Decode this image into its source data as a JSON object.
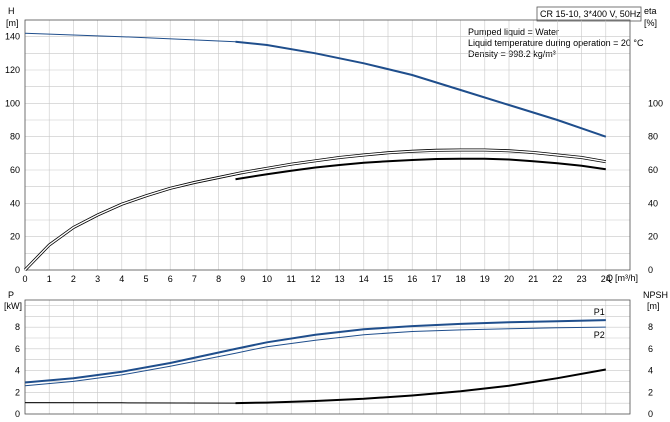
{
  "info": {
    "model": "CR 15-10, 3*400 V, 50Hz",
    "lines": [
      "Pumped liquid = Water",
      "Liquid temperature during operation = 20 °C",
      "Density = 998.2 kg/m³"
    ]
  },
  "colors": {
    "head": "#1f4e8c",
    "eta": "#000000",
    "p": "#1f4e8c",
    "npsh": "#000000",
    "grid": "#c8c8c8"
  },
  "chart_data": [
    {
      "type": "line",
      "x_label": "Q",
      "x_unit": "[m³/h]",
      "left_axis": {
        "label": "H",
        "unit": "[m]",
        "ylim": [
          0,
          150
        ],
        "ticks": [
          0,
          20,
          40,
          60,
          80,
          100,
          120,
          140
        ]
      },
      "right_axis": {
        "label": "eta",
        "unit": "[%]",
        "ylim": [
          0,
          150
        ],
        "ticks": [
          0,
          20,
          40,
          60,
          80,
          100
        ]
      },
      "xlim": [
        0,
        25
      ],
      "x_ticks": [
        0,
        1,
        2,
        3,
        4,
        5,
        6,
        7,
        8,
        9,
        10,
        11,
        12,
        13,
        14,
        15,
        16,
        17,
        18,
        19,
        20,
        21,
        22,
        23,
        24
      ],
      "grid": true,
      "series": [
        {
          "key": "head_thin",
          "axis": "left",
          "style": "thin",
          "x": [
            0,
            4,
            8.7
          ],
          "y": [
            142,
            140,
            137
          ]
        },
        {
          "key": "head",
          "axis": "left",
          "style": "thick",
          "x": [
            8.7,
            10,
            12,
            14,
            16,
            18,
            20,
            22,
            24
          ],
          "y": [
            137,
            135,
            130,
            124,
            117,
            108,
            99,
            90,
            80
          ]
        },
        {
          "key": "eta_upper",
          "axis": "right",
          "style": "double",
          "x": [
            0,
            1,
            2,
            3,
            4,
            5,
            6,
            7,
            8,
            9,
            10,
            11,
            12,
            13,
            14,
            15,
            16,
            17,
            18,
            19,
            20,
            21,
            22,
            23,
            24
          ],
          "y": [
            0,
            15,
            25.5,
            33,
            39.5,
            44.5,
            49,
            52.5,
            55.5,
            58.5,
            61,
            63.5,
            65.5,
            67.5,
            69,
            70.3,
            71.2,
            71.8,
            72,
            72,
            71.5,
            70.5,
            69,
            67.5,
            65
          ]
        },
        {
          "key": "eta",
          "axis": "right",
          "style": "thick",
          "x": [
            8.7,
            10,
            11,
            12,
            13,
            14,
            15,
            16,
            17,
            18,
            19,
            20,
            21,
            22,
            23,
            24
          ],
          "y": [
            54.5,
            57.5,
            59.5,
            61.5,
            63,
            64.3,
            65.3,
            66,
            66.6,
            66.8,
            66.8,
            66.3,
            65.3,
            64,
            62.5,
            60.5
          ]
        }
      ]
    },
    {
      "type": "line",
      "x_label": "",
      "left_axis": {
        "label": "P",
        "unit": "[kW]",
        "ylim": [
          0,
          10.5
        ],
        "ticks": [
          0,
          2,
          4,
          6,
          8
        ]
      },
      "right_axis": {
        "label": "NPSH",
        "unit": "[m]",
        "ylim": [
          0,
          10.5
        ],
        "ticks": [
          0,
          2,
          4,
          6,
          8
        ]
      },
      "xlim": [
        0,
        25
      ],
      "grid": true,
      "series": [
        {
          "key": "p1",
          "name": "P1",
          "axis": "left",
          "style": "thick",
          "x": [
            0,
            2,
            4,
            6,
            8.7,
            10,
            12,
            14,
            16,
            18,
            20,
            22,
            24
          ],
          "y": [
            2.9,
            3.3,
            3.9,
            4.7,
            6.0,
            6.6,
            7.3,
            7.8,
            8.1,
            8.3,
            8.45,
            8.55,
            8.65
          ]
        },
        {
          "key": "p2",
          "name": "P2",
          "axis": "left",
          "style": "thin",
          "x": [
            0,
            2,
            4,
            6,
            8.7,
            10,
            12,
            14,
            16,
            18,
            20,
            22,
            24
          ],
          "y": [
            2.6,
            3.0,
            3.6,
            4.4,
            5.6,
            6.2,
            6.8,
            7.3,
            7.6,
            7.75,
            7.85,
            7.95,
            8.0
          ]
        },
        {
          "key": "npsh_thin",
          "axis": "right",
          "style": "thin",
          "x": [
            0,
            4,
            8.7
          ],
          "y": [
            1.05,
            1.03,
            1.0
          ]
        },
        {
          "key": "npsh",
          "axis": "right",
          "style": "thick",
          "x": [
            8.7,
            10,
            12,
            14,
            16,
            18,
            20,
            22,
            24
          ],
          "y": [
            1.0,
            1.05,
            1.2,
            1.4,
            1.7,
            2.1,
            2.6,
            3.3,
            4.1
          ]
        }
      ]
    }
  ]
}
